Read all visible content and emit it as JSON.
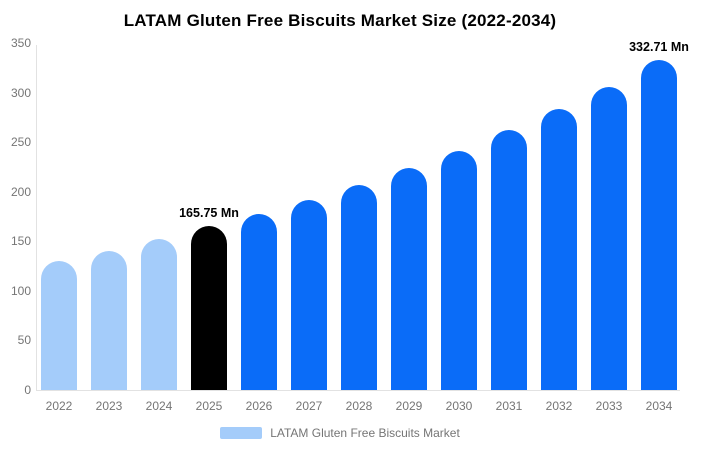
{
  "chart_data": {
    "type": "bar",
    "title": "LATAM Gluten Free Biscuits Market Size (2022-2034)",
    "xlabel": "",
    "ylabel": "",
    "ylim": [
      0,
      350
    ],
    "yticks": [
      350,
      300,
      250,
      200,
      150,
      100,
      50,
      0
    ],
    "grid": false,
    "legend_position": "bottom",
    "categories": [
      "2022",
      "2023",
      "2024",
      "2025",
      "2026",
      "2027",
      "2028",
      "2029",
      "2030",
      "2031",
      "2032",
      "2033",
      "2034"
    ],
    "series": [
      {
        "name": "LATAM Gluten Free Biscuits Market",
        "values": [
          130,
          140,
          152,
          165.75,
          178,
          192,
          207,
          224,
          241,
          262,
          283,
          306,
          332.71
        ]
      }
    ],
    "bar_colors": [
      "#a4ccfa",
      "#a4ccfa",
      "#a4ccfa",
      "#000000",
      "#0a6cf8",
      "#0a6cf8",
      "#0a6cf8",
      "#0a6cf8",
      "#0a6cf8",
      "#0a6cf8",
      "#0a6cf8",
      "#0a6cf8",
      "#0a6cf8"
    ],
    "annotations": [
      {
        "category": "2025",
        "text": "165.75 Mn"
      },
      {
        "category": "2034",
        "text": "332.71 Mn"
      }
    ]
  },
  "legend": {
    "label": "LATAM Gluten Free Biscuits Market",
    "swatch_color": "#a4ccfa"
  },
  "colors": {
    "light_blue": "#a4ccfa",
    "bright_blue": "#0a6cf8",
    "highlight_black": "#000000",
    "axis_text": "#757575",
    "axis_line": "#e2e2e2",
    "title_text": "#000000"
  }
}
